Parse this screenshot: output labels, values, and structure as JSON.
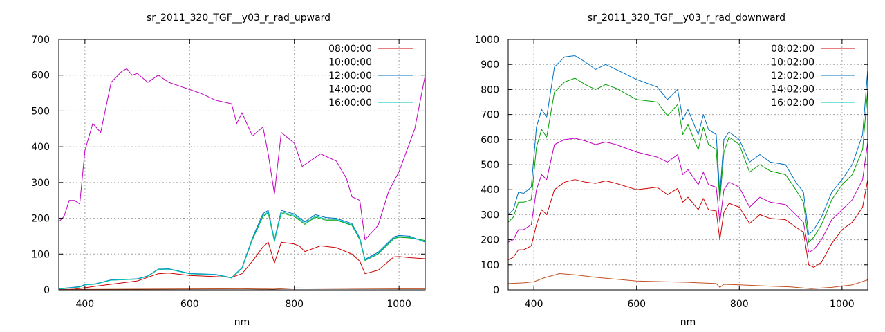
{
  "chart_data": [
    {
      "type": "line",
      "title": "sr_2011_320_TGF__y03_r_rad_upward",
      "xlabel": "nm",
      "ylabel": "",
      "xlim": [
        350,
        1050
      ],
      "ylim": [
        0,
        700
      ],
      "xticks": [
        400,
        600,
        800,
        1000
      ],
      "yticks": [
        0,
        100,
        200,
        300,
        400,
        500,
        600,
        700
      ],
      "grid": true,
      "legend_position": "top-right",
      "series": [
        {
          "name": "08:00:00",
          "color": "#cc0000",
          "x": [
            350,
            380,
            420,
            500,
            540,
            560,
            600,
            680,
            700,
            720,
            740,
            750,
            762,
            775,
            800,
            810,
            820,
            850,
            880,
            910,
            925,
            935,
            960,
            990,
            1000,
            1020,
            1050
          ],
          "y": [
            0,
            2,
            10,
            25,
            45,
            47,
            40,
            35,
            45,
            80,
            120,
            133,
            75,
            133,
            128,
            122,
            107,
            123,
            118,
            100,
            80,
            45,
            55,
            92,
            93,
            90,
            87
          ]
        },
        {
          "name": "10:00:00",
          "color": "#00a000",
          "x": [
            350,
            370,
            390,
            400,
            420,
            450,
            500,
            520,
            540,
            560,
            600,
            650,
            680,
            700,
            720,
            740,
            750,
            762,
            775,
            800,
            820,
            840,
            860,
            880,
            910,
            925,
            935,
            960,
            990,
            1000,
            1020,
            1050
          ],
          "y": [
            2,
            5,
            8,
            14,
            16,
            27,
            30,
            38,
            57,
            58,
            45,
            42,
            33,
            60,
            140,
            205,
            215,
            135,
            215,
            205,
            183,
            203,
            195,
            195,
            180,
            140,
            82,
            100,
            143,
            147,
            145,
            138
          ]
        },
        {
          "name": "12:00:00",
          "color": "#0070c0",
          "x": [
            350,
            370,
            390,
            400,
            420,
            450,
            500,
            520,
            540,
            560,
            600,
            650,
            680,
            700,
            720,
            740,
            750,
            762,
            775,
            800,
            820,
            840,
            860,
            880,
            910,
            925,
            935,
            960,
            990,
            1000,
            1020,
            1050
          ],
          "y": [
            3,
            6,
            9,
            15,
            17,
            28,
            31,
            39,
            58,
            59,
            46,
            43,
            34,
            62,
            145,
            213,
            222,
            140,
            222,
            212,
            190,
            210,
            202,
            200,
            185,
            145,
            85,
            105,
            148,
            152,
            150,
            133
          ]
        },
        {
          "name": "14:00:00",
          "color": "#c000c0",
          "x": [
            350,
            360,
            370,
            380,
            390,
            400,
            415,
            430,
            450,
            470,
            480,
            490,
            500,
            520,
            540,
            560,
            600,
            620,
            650,
            680,
            690,
            700,
            720,
            740,
            750,
            762,
            775,
            800,
            815,
            830,
            850,
            880,
            900,
            910,
            925,
            935,
            960,
            980,
            1000,
            1030,
            1050
          ],
          "y": [
            190,
            205,
            250,
            250,
            240,
            390,
            465,
            440,
            580,
            610,
            618,
            600,
            605,
            580,
            600,
            580,
            560,
            550,
            530,
            520,
            465,
            495,
            430,
            455,
            380,
            268,
            440,
            410,
            345,
            360,
            380,
            360,
            310,
            260,
            250,
            140,
            180,
            275,
            330,
            450,
            600
          ]
        },
        {
          "name": "16:00:00",
          "color": "#00c0c0",
          "x": [
            350,
            370,
            390,
            400,
            420,
            450,
            500,
            520,
            540,
            560,
            600,
            650,
            680,
            700,
            720,
            740,
            750,
            762,
            775,
            800,
            820,
            840,
            860,
            880,
            910,
            925,
            935,
            960,
            990,
            1000,
            1020,
            1050
          ],
          "y": [
            2,
            5,
            8,
            14,
            16,
            27,
            30,
            38,
            57,
            58,
            45,
            42,
            33,
            61,
            142,
            208,
            218,
            137,
            218,
            208,
            186,
            206,
            198,
            197,
            182,
            142,
            83,
            102,
            145,
            149,
            147,
            135
          ]
        },
        {
          "name": "",
          "color": "#c05020",
          "x": [
            350,
            500,
            700,
            760,
            800,
            900,
            1000,
            1050
          ],
          "y": [
            1,
            2,
            3,
            2,
            5,
            4,
            3,
            3
          ]
        }
      ]
    },
    {
      "type": "line",
      "title": "sr_2011_320_TGF__y03_r_rad_downward",
      "xlabel": "nm",
      "ylabel": "",
      "xlim": [
        350,
        1050
      ],
      "ylim": [
        0,
        1000
      ],
      "xticks": [
        400,
        600,
        800,
        1000
      ],
      "yticks": [
        0,
        100,
        200,
        300,
        400,
        500,
        600,
        700,
        800,
        900,
        1000
      ],
      "grid": true,
      "legend_position": "top-right",
      "series": [
        {
          "name": "08:02:00",
          "color": "#cc0000",
          "x": [
            350,
            360,
            370,
            380,
            395,
            405,
            415,
            425,
            440,
            460,
            480,
            500,
            520,
            540,
            560,
            600,
            640,
            660,
            680,
            690,
            700,
            720,
            730,
            740,
            755,
            762,
            770,
            780,
            800,
            820,
            840,
            860,
            890,
            910,
            925,
            935,
            945,
            960,
            980,
            1000,
            1020,
            1040,
            1050
          ],
          "y": [
            120,
            130,
            160,
            160,
            175,
            260,
            320,
            300,
            400,
            430,
            440,
            430,
            425,
            435,
            425,
            400,
            410,
            380,
            405,
            350,
            370,
            320,
            365,
            320,
            315,
            200,
            310,
            345,
            330,
            265,
            300,
            285,
            280,
            250,
            230,
            100,
            90,
            110,
            185,
            240,
            270,
            330,
            440
          ]
        },
        {
          "name": "10:02:00",
          "color": "#00a000",
          "x": [
            350,
            360,
            370,
            380,
            395,
            405,
            415,
            425,
            440,
            460,
            480,
            500,
            520,
            540,
            560,
            600,
            640,
            660,
            680,
            690,
            700,
            720,
            730,
            740,
            755,
            762,
            770,
            780,
            800,
            820,
            840,
            860,
            890,
            910,
            925,
            935,
            945,
            960,
            980,
            1000,
            1020,
            1040,
            1050
          ],
          "y": [
            270,
            290,
            350,
            350,
            360,
            570,
            640,
            610,
            790,
            830,
            845,
            820,
            800,
            820,
            805,
            760,
            750,
            695,
            740,
            620,
            660,
            560,
            650,
            580,
            560,
            355,
            550,
            610,
            580,
            470,
            500,
            475,
            460,
            400,
            350,
            190,
            210,
            260,
            360,
            420,
            460,
            560,
            800
          ]
        },
        {
          "name": "12:02:00",
          "color": "#0070c0",
          "x": [
            350,
            360,
            370,
            380,
            395,
            405,
            415,
            425,
            440,
            460,
            480,
            500,
            520,
            540,
            560,
            600,
            640,
            660,
            680,
            690,
            700,
            720,
            730,
            740,
            755,
            762,
            770,
            780,
            800,
            820,
            840,
            860,
            890,
            910,
            925,
            935,
            945,
            960,
            980,
            1000,
            1020,
            1040,
            1050
          ],
          "y": [
            300,
            320,
            390,
            385,
            410,
            650,
            720,
            690,
            890,
            930,
            935,
            910,
            880,
            900,
            880,
            840,
            810,
            760,
            800,
            680,
            720,
            620,
            700,
            640,
            620,
            380,
            600,
            630,
            600,
            510,
            540,
            510,
            500,
            430,
            390,
            220,
            240,
            290,
            390,
            440,
            500,
            620,
            880
          ]
        },
        {
          "name": "14:02:00",
          "color": "#c000c0",
          "x": [
            350,
            360,
            370,
            380,
            395,
            405,
            415,
            425,
            440,
            460,
            480,
            500,
            520,
            540,
            560,
            600,
            640,
            660,
            680,
            690,
            700,
            720,
            730,
            740,
            755,
            762,
            770,
            780,
            800,
            820,
            840,
            860,
            890,
            910,
            925,
            935,
            945,
            960,
            980,
            1000,
            1020,
            1040,
            1050
          ],
          "y": [
            190,
            200,
            240,
            240,
            260,
            400,
            460,
            440,
            580,
            600,
            605,
            595,
            580,
            590,
            580,
            550,
            530,
            510,
            540,
            460,
            480,
            420,
            470,
            420,
            410,
            270,
            400,
            430,
            410,
            330,
            370,
            350,
            340,
            300,
            270,
            150,
            160,
            200,
            280,
            320,
            360,
            440,
            590
          ]
        },
        {
          "name": "16:02:00",
          "color": "#00c0c0",
          "x": [
            350,
            1050
          ],
          "y": [
            null,
            null
          ]
        },
        {
          "name": "",
          "color": "#c05020",
          "x": [
            350,
            380,
            400,
            420,
            450,
            480,
            520,
            600,
            700,
            755,
            762,
            770,
            800,
            860,
            900,
            940,
            980,
            1020,
            1050
          ],
          "y": [
            25,
            28,
            32,
            48,
            65,
            60,
            50,
            35,
            30,
            25,
            10,
            22,
            20,
            15,
            12,
            5,
            10,
            20,
            40
          ]
        }
      ]
    }
  ]
}
